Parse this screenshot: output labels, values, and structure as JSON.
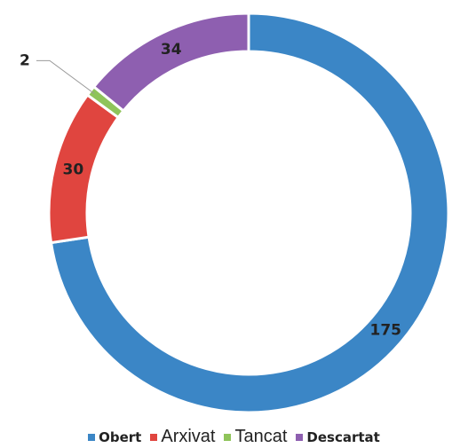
{
  "chart_data": {
    "type": "donut",
    "categories": [
      "Obert",
      "Arxivat",
      "Tancat",
      "Descartat"
    ],
    "values": [
      175,
      30,
      2,
      34
    ],
    "colors": [
      "#3b86c6",
      "#e0453f",
      "#8fc45a",
      "#8e5fb0"
    ],
    "legend": "bottom"
  }
}
